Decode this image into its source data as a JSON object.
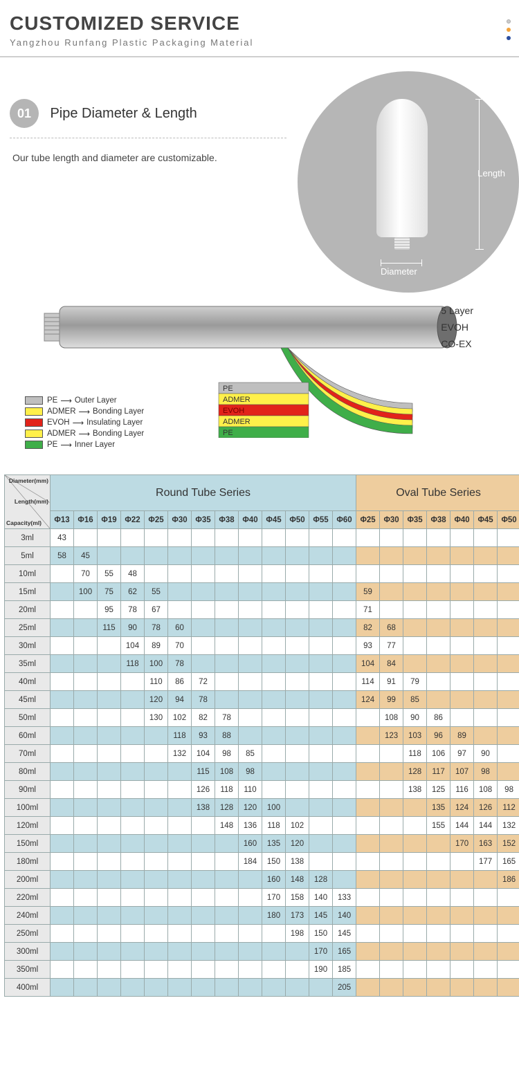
{
  "header": {
    "title": "CUSTOMIZED SERVICE",
    "subtitle": "Yangzhou Runfang Plastic Packaging Material",
    "dots": [
      "#cccccc",
      "#f2a23a",
      "#2b4ea0"
    ]
  },
  "section1": {
    "number": "01",
    "title": "Pipe Diameter & Length",
    "desc": "Our tube length and diameter are customizable.",
    "length_label": "Length",
    "diameter_label": "Diameter"
  },
  "section2": {
    "right_labels": [
      "5 Layer",
      "EVOH",
      "CO-EX"
    ],
    "left_legend": [
      {
        "color": "#bfbfbf",
        "material": "PE",
        "role": "Outer Layer"
      },
      {
        "color": "#fff04a",
        "material": "ADMER",
        "role": "Bonding Layer"
      },
      {
        "color": "#e2231a",
        "material": "EVOH",
        "role": "Insulating Layer"
      },
      {
        "color": "#fff04a",
        "material": "ADMER",
        "role": "Bonding Layer"
      },
      {
        "color": "#3fae49",
        "material": "PE",
        "role": "Inner Layer"
      }
    ],
    "sandwich_labels": [
      "PE",
      "ADMER",
      "EVOH",
      "ADMER",
      "PE"
    ],
    "sandwich_colors": [
      "#bfbfbf",
      "#fff04a",
      "#e2231a",
      "#fff04a",
      "#3fae49"
    ]
  },
  "table": {
    "diag_labels": {
      "diameter": "Diameter(mm)",
      "length": "Length(mm)",
      "capacity": "Capacity(ml)"
    },
    "round_title": "Round Tube Series",
    "oval_title": "Oval Tube Series",
    "round_cols": [
      "Φ13",
      "Φ16",
      "Φ19",
      "Φ22",
      "Φ25",
      "Φ30",
      "Φ35",
      "Φ38",
      "Φ40",
      "Φ45",
      "Φ50",
      "Φ55",
      "Φ60"
    ],
    "oval_cols": [
      "Φ25",
      "Φ30",
      "Φ35",
      "Φ38",
      "Φ40",
      "Φ45",
      "Φ50"
    ],
    "rows": [
      {
        "cap": "3ml",
        "r": [
          "43",
          "",
          "",
          "",
          "",
          "",
          "",
          "",
          "",
          "",
          "",
          "",
          ""
        ],
        "o": [
          "",
          "",
          "",
          "",
          "",
          "",
          ""
        ]
      },
      {
        "cap": "5ml",
        "r": [
          "58",
          "45",
          "",
          "",
          "",
          "",
          "",
          "",
          "",
          "",
          "",
          "",
          ""
        ],
        "o": [
          "",
          "",
          "",
          "",
          "",
          "",
          ""
        ]
      },
      {
        "cap": "10ml",
        "r": [
          "",
          "70",
          "55",
          "48",
          "",
          "",
          "",
          "",
          "",
          "",
          "",
          "",
          ""
        ],
        "o": [
          "",
          "",
          "",
          "",
          "",
          "",
          ""
        ]
      },
      {
        "cap": "15ml",
        "r": [
          "",
          "100",
          "75",
          "62",
          "55",
          "",
          "",
          "",
          "",
          "",
          "",
          "",
          ""
        ],
        "o": [
          "59",
          "",
          "",
          "",
          "",
          "",
          ""
        ]
      },
      {
        "cap": "20ml",
        "r": [
          "",
          "",
          "95",
          "78",
          "67",
          "",
          "",
          "",
          "",
          "",
          "",
          "",
          ""
        ],
        "o": [
          "71",
          "",
          "",
          "",
          "",
          "",
          ""
        ]
      },
      {
        "cap": "25ml",
        "r": [
          "",
          "",
          "115",
          "90",
          "78",
          "60",
          "",
          "",
          "",
          "",
          "",
          "",
          ""
        ],
        "o": [
          "82",
          "68",
          "",
          "",
          "",
          "",
          ""
        ]
      },
      {
        "cap": "30ml",
        "r": [
          "",
          "",
          "",
          "104",
          "89",
          "70",
          "",
          "",
          "",
          "",
          "",
          "",
          ""
        ],
        "o": [
          "93",
          "77",
          "",
          "",
          "",
          "",
          ""
        ]
      },
      {
        "cap": "35ml",
        "r": [
          "",
          "",
          "",
          "118",
          "100",
          "78",
          "",
          "",
          "",
          "",
          "",
          "",
          ""
        ],
        "o": [
          "104",
          "84",
          "",
          "",
          "",
          "",
          ""
        ]
      },
      {
        "cap": "40ml",
        "r": [
          "",
          "",
          "",
          "",
          "110",
          "86",
          "72",
          "",
          "",
          "",
          "",
          "",
          ""
        ],
        "o": [
          "114",
          "91",
          "79",
          "",
          "",
          "",
          ""
        ]
      },
      {
        "cap": "45ml",
        "r": [
          "",
          "",
          "",
          "",
          "120",
          "94",
          "78",
          "",
          "",
          "",
          "",
          "",
          ""
        ],
        "o": [
          "124",
          "99",
          "85",
          "",
          "",
          "",
          ""
        ]
      },
      {
        "cap": "50ml",
        "r": [
          "",
          "",
          "",
          "",
          "130",
          "102",
          "82",
          "78",
          "",
          "",
          "",
          "",
          ""
        ],
        "o": [
          "",
          "108",
          "90",
          "86",
          "",
          "",
          ""
        ]
      },
      {
        "cap": "60ml",
        "r": [
          "",
          "",
          "",
          "",
          "",
          "118",
          "93",
          "88",
          "",
          "",
          "",
          "",
          ""
        ],
        "o": [
          "",
          "123",
          "103",
          "96",
          "89",
          "",
          ""
        ]
      },
      {
        "cap": "70ml",
        "r": [
          "",
          "",
          "",
          "",
          "",
          "132",
          "104",
          "98",
          "85",
          "",
          "",
          "",
          ""
        ],
        "o": [
          "",
          "",
          "118",
          "106",
          "97",
          "90",
          ""
        ]
      },
      {
        "cap": "80ml",
        "r": [
          "",
          "",
          "",
          "",
          "",
          "",
          "115",
          "108",
          "98",
          "",
          "",
          "",
          ""
        ],
        "o": [
          "",
          "",
          "128",
          "117",
          "107",
          "98",
          ""
        ]
      },
      {
        "cap": "90ml",
        "r": [
          "",
          "",
          "",
          "",
          "",
          "",
          "126",
          "118",
          "110",
          "",
          "",
          "",
          ""
        ],
        "o": [
          "",
          "",
          "138",
          "125",
          "116",
          "108",
          "98"
        ]
      },
      {
        "cap": "100ml",
        "r": [
          "",
          "",
          "",
          "",
          "",
          "",
          "138",
          "128",
          "120",
          "100",
          "",
          "",
          ""
        ],
        "o": [
          "",
          "",
          "",
          "135",
          "124",
          "126",
          "112"
        ]
      },
      {
        "cap": "120ml",
        "r": [
          "",
          "",
          "",
          "",
          "",
          "",
          "",
          "148",
          "136",
          "118",
          "102",
          "",
          ""
        ],
        "o": [
          "",
          "",
          "",
          "155",
          "144",
          "144",
          "132"
        ]
      },
      {
        "cap": "150ml",
        "r": [
          "",
          "",
          "",
          "",
          "",
          "",
          "",
          "",
          "160",
          "135",
          "120",
          "",
          ""
        ],
        "o": [
          "",
          "",
          "",
          "",
          "170",
          "163",
          "152"
        ]
      },
      {
        "cap": "180ml",
        "r": [
          "",
          "",
          "",
          "",
          "",
          "",
          "",
          "",
          "184",
          "150",
          "138",
          "",
          ""
        ],
        "o": [
          "",
          "",
          "",
          "",
          "",
          "177",
          "165"
        ]
      },
      {
        "cap": "200ml",
        "r": [
          "",
          "",
          "",
          "",
          "",
          "",
          "",
          "",
          "",
          "160",
          "148",
          "128",
          ""
        ],
        "o": [
          "",
          "",
          "",
          "",
          "",
          "",
          "186"
        ]
      },
      {
        "cap": "220ml",
        "r": [
          "",
          "",
          "",
          "",
          "",
          "",
          "",
          "",
          "",
          "170",
          "158",
          "140",
          "133"
        ],
        "o": [
          "",
          "",
          "",
          "",
          "",
          "",
          ""
        ]
      },
      {
        "cap": "240ml",
        "r": [
          "",
          "",
          "",
          "",
          "",
          "",
          "",
          "",
          "",
          "180",
          "173",
          "145",
          "140"
        ],
        "o": [
          "",
          "",
          "",
          "",
          "",
          "",
          ""
        ]
      },
      {
        "cap": "250ml",
        "r": [
          "",
          "",
          "",
          "",
          "",
          "",
          "",
          "",
          "",
          "",
          "198",
          "150",
          "145"
        ],
        "o": [
          "",
          "",
          "",
          "",
          "",
          "",
          ""
        ]
      },
      {
        "cap": "300ml",
        "r": [
          "",
          "",
          "",
          "",
          "",
          "",
          "",
          "",
          "",
          "",
          "",
          "170",
          "165"
        ],
        "o": [
          "",
          "",
          "",
          "",
          "",
          "",
          ""
        ]
      },
      {
        "cap": "350ml",
        "r": [
          "",
          "",
          "",
          "",
          "",
          "",
          "",
          "",
          "",
          "",
          "",
          "190",
          "185"
        ],
        "o": [
          "",
          "",
          "",
          "",
          "",
          "",
          ""
        ]
      },
      {
        "cap": "400ml",
        "r": [
          "",
          "",
          "",
          "",
          "",
          "",
          "",
          "",
          "",
          "",
          "",
          "",
          "205"
        ],
        "o": [
          "",
          "",
          "",
          "",
          "",
          "",
          ""
        ]
      }
    ],
    "colors": {
      "round_bg": "#bddbe3",
      "oval_bg": "#eecd9e",
      "rowhead_bg": "#e9e9e9",
      "border": "#9aa"
    }
  }
}
